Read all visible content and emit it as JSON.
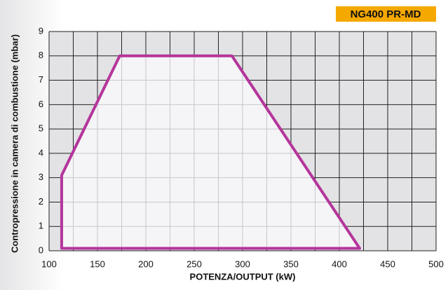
{
  "chart_data": {
    "type": "line",
    "title": "NG400 PR-MD",
    "xlabel": "POTENZA/OUTPUT (kW)",
    "ylabel": "Contropressione in camera di combustione (mbar)",
    "x": [
      113,
      113,
      173,
      289,
      421
    ],
    "values": [
      0.1,
      3.1,
      8,
      8,
      0.1
    ],
    "color": "#b5359b",
    "xlim": [
      100,
      500
    ],
    "xticks": [
      100,
      150,
      200,
      250,
      300,
      350,
      400,
      450,
      500
    ],
    "ylim": [
      0,
      9
    ],
    "yticks": [
      0,
      1,
      2,
      3,
      4,
      5,
      6,
      7,
      8,
      9
    ],
    "grid": true
  }
}
